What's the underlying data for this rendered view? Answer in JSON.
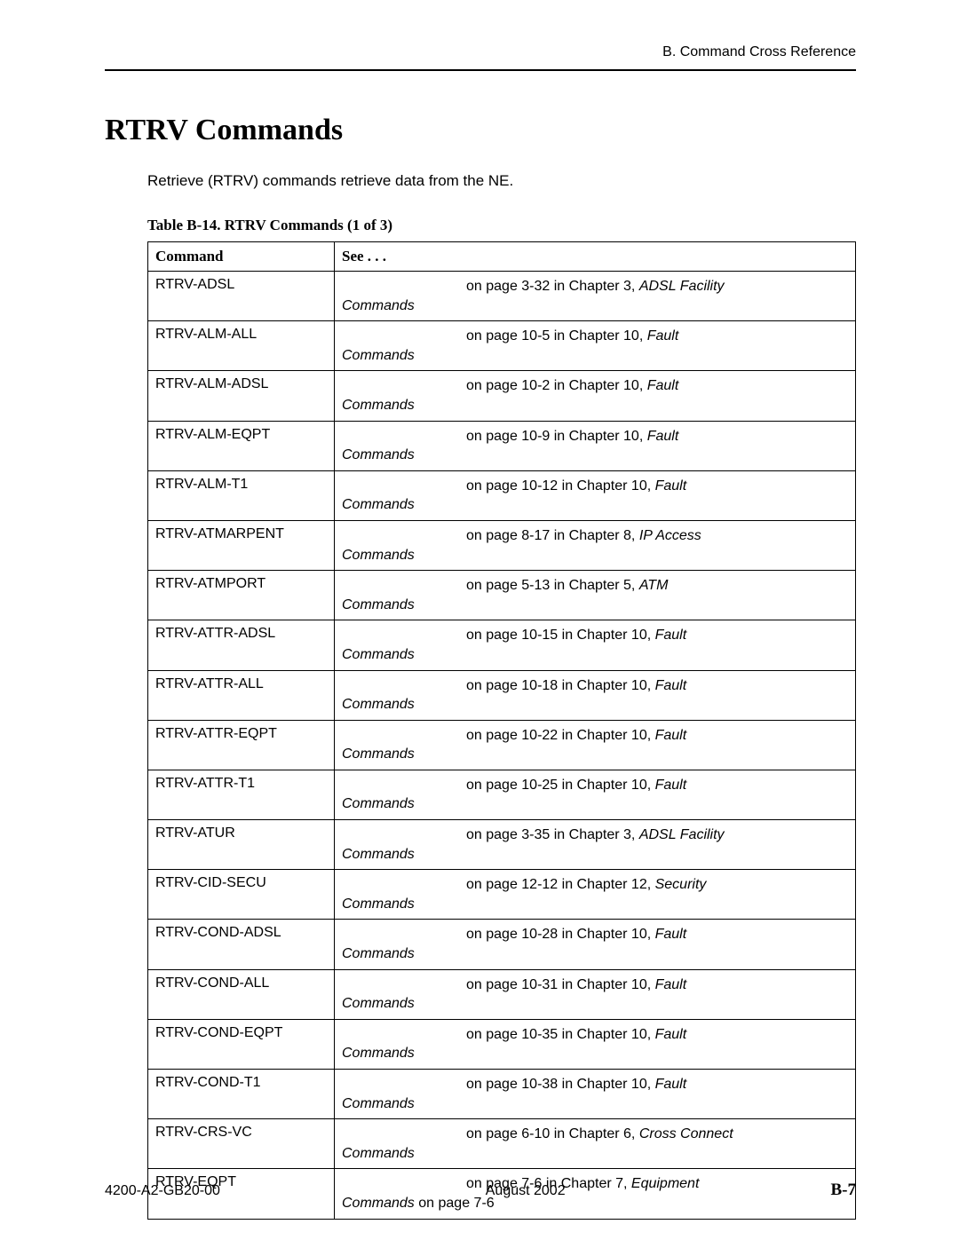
{
  "header_right": "B. Command Cross Reference",
  "title": "RTRV Commands",
  "intro": "Retrieve (RTRV) commands retrieve data from the NE.",
  "table_caption": "Table B-14.  RTRV Commands (1 of 3)",
  "col_command": "Command",
  "col_see": "See . . .",
  "rows": [
    {
      "cmd": "RTRV-ADSL",
      "page": "on page 3-32 in Chapter 3, ",
      "chap": "ADSL Facility",
      "tail": "Commands",
      "extra": ""
    },
    {
      "cmd": "RTRV-ALM-ALL",
      "page": "on page 10-5 in Chapter 10, ",
      "chap": "Fault",
      "tail": "Commands",
      "extra": ""
    },
    {
      "cmd": "RTRV-ALM-ADSL",
      "page": "on page 10-2 in Chapter 10, ",
      "chap": "Fault",
      "tail": "Commands",
      "extra": ""
    },
    {
      "cmd": "RTRV-ALM-EQPT",
      "page": "on page 10-9 in Chapter 10, ",
      "chap": "Fault",
      "tail": "Commands",
      "extra": ""
    },
    {
      "cmd": "RTRV-ALM-T1",
      "page": "on page 10-12 in Chapter 10, ",
      "chap": "Fault",
      "tail": "Commands",
      "extra": ""
    },
    {
      "cmd": "RTRV-ATMARPENT",
      "page": "on page 8-17 in Chapter 8, ",
      "chap": "IP Access",
      "tail": "Commands",
      "extra": ""
    },
    {
      "cmd": "RTRV-ATMPORT",
      "page": "on page 5-13 in Chapter 5, ",
      "chap": "ATM",
      "tail": "Commands",
      "extra": ""
    },
    {
      "cmd": "RTRV-ATTR-ADSL",
      "page": "on page 10-15 in Chapter 10, ",
      "chap": "Fault",
      "tail": "Commands",
      "extra": ""
    },
    {
      "cmd": "RTRV-ATTR-ALL",
      "page": "on page 10-18 in Chapter 10, ",
      "chap": "Fault",
      "tail": "Commands",
      "extra": ""
    },
    {
      "cmd": "RTRV-ATTR-EQPT",
      "page": "on page 10-22 in Chapter 10, ",
      "chap": "Fault",
      "tail": "Commands",
      "extra": ""
    },
    {
      "cmd": "RTRV-ATTR-T1",
      "page": "on page 10-25 in Chapter 10, ",
      "chap": "Fault",
      "tail": "Commands",
      "extra": ""
    },
    {
      "cmd": "RTRV-ATUR",
      "page": "on page 3-35 in Chapter 3, ",
      "chap": "ADSL Facility",
      "tail": "Commands",
      "extra": ""
    },
    {
      "cmd": "RTRV-CID-SECU",
      "page": "on page 12-12 in Chapter 12, ",
      "chap": "Security",
      "tail": "Commands",
      "extra": ""
    },
    {
      "cmd": "RTRV-COND-ADSL",
      "page": "on page 10-28 in Chapter 10, ",
      "chap": "Fault",
      "tail": "Commands",
      "extra": ""
    },
    {
      "cmd": "RTRV-COND-ALL",
      "page": "on page 10-31 in Chapter 10, ",
      "chap": "Fault",
      "tail": "Commands",
      "extra": ""
    },
    {
      "cmd": "RTRV-COND-EQPT",
      "page": "on page 10-35 in Chapter 10, ",
      "chap": "Fault",
      "tail": "Commands",
      "extra": ""
    },
    {
      "cmd": "RTRV-COND-T1",
      "page": "on page 10-38 in Chapter 10, ",
      "chap": "Fault",
      "tail": "Commands",
      "extra": ""
    },
    {
      "cmd": "RTRV-CRS-VC",
      "page": "on page 6-10 in Chapter 6, ",
      "chap": "Cross Connect",
      "tail": "Commands",
      "extra": ""
    },
    {
      "cmd": "RTRV-EQPT",
      "page": "on page 7-6 in Chapter 7, ",
      "chap": "Equipment",
      "tail": "Commands",
      "extra": " on page 7-6"
    }
  ],
  "footer_left": "4200-A2-GB20-00",
  "footer_center": "August 2002",
  "footer_right": "B-7"
}
